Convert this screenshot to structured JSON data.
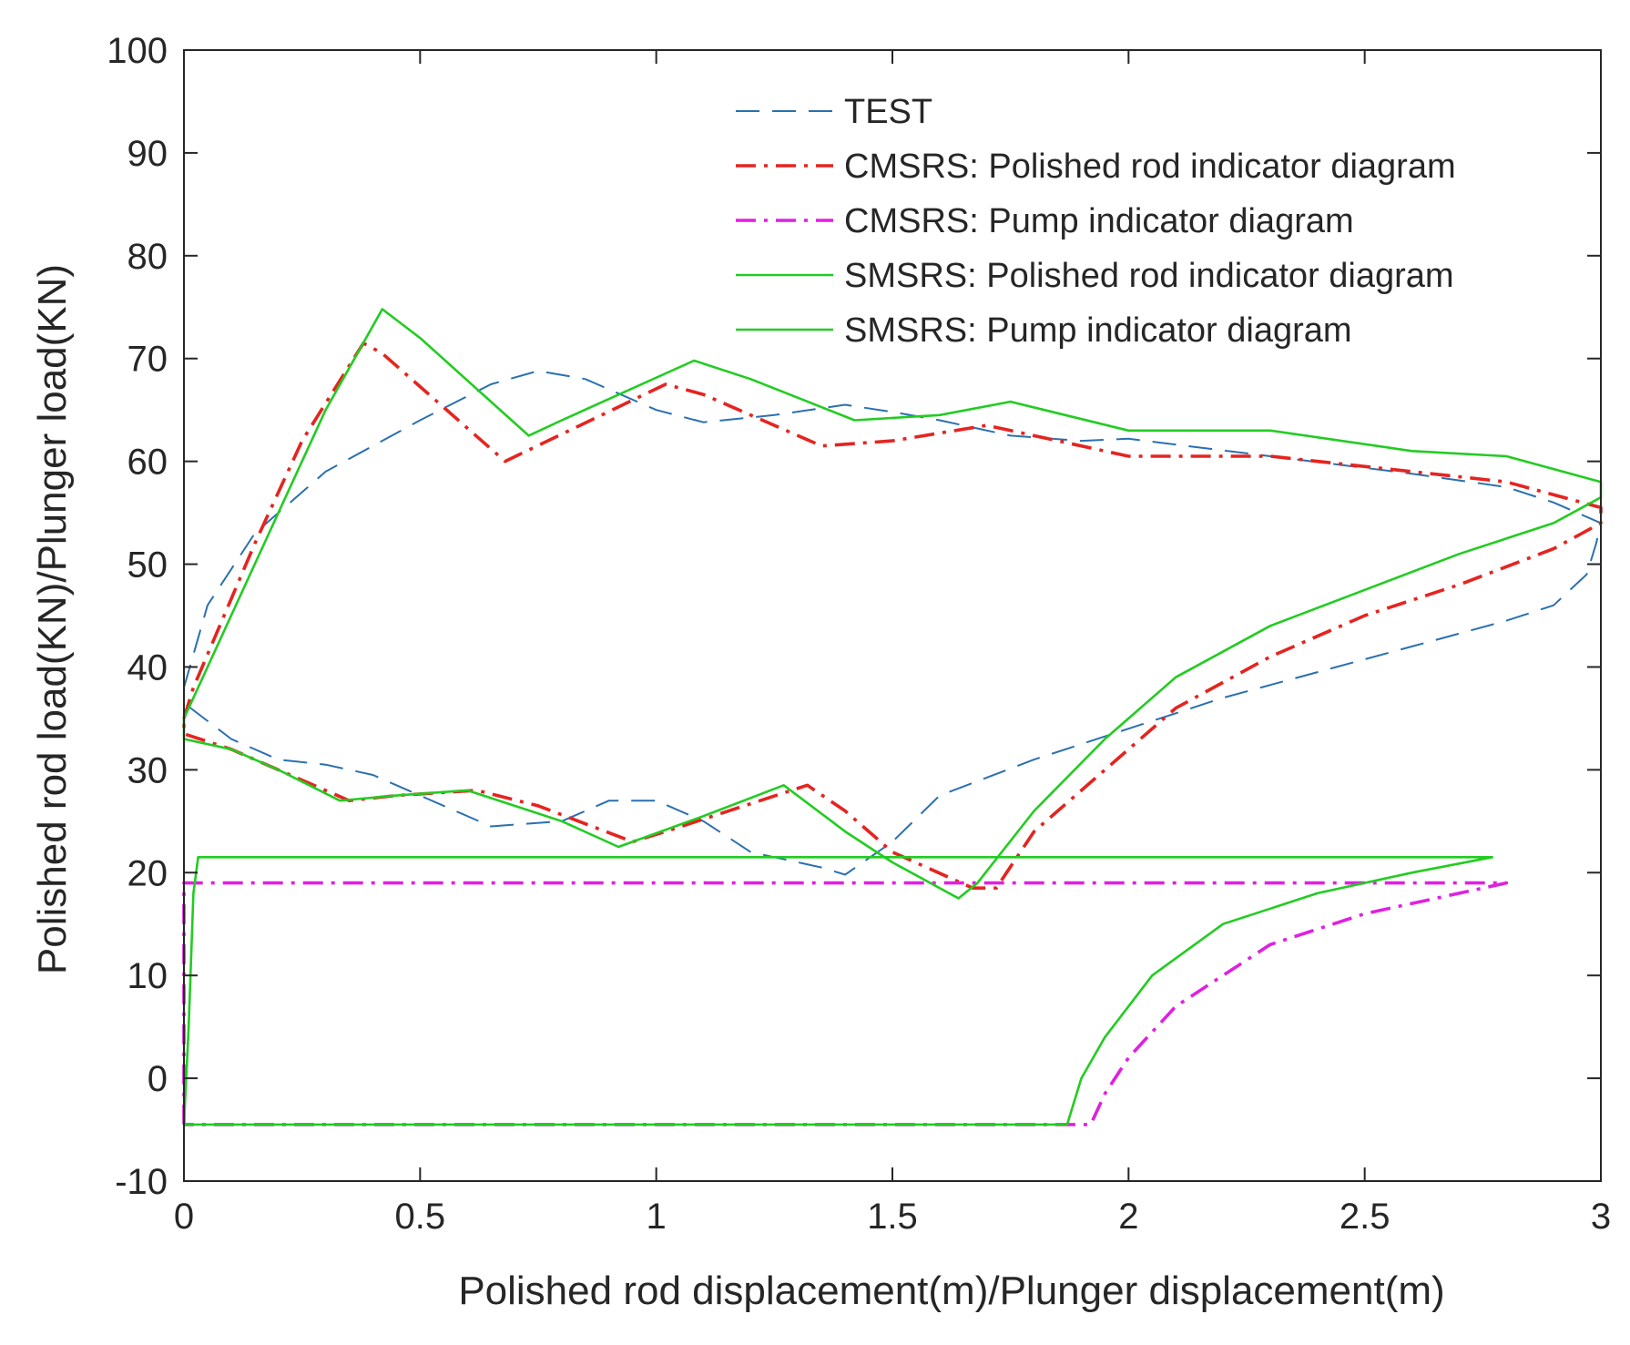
{
  "chart_data": {
    "type": "line",
    "title": "",
    "xlabel": "Polished rod displacement(m)/Plunger displacement(m)",
    "ylabel": "Polished rod load(KN)/Plunger load(KN)",
    "xlim": [
      0,
      3
    ],
    "ylim": [
      -10,
      100
    ],
    "xticks": [
      0,
      0.5,
      1,
      1.5,
      2,
      2.5,
      3
    ],
    "xtick_labels": [
      "0",
      "0.5",
      "1",
      "1.5",
      "2",
      "2.5",
      "3"
    ],
    "yticks": [
      -10,
      0,
      10,
      20,
      30,
      40,
      50,
      60,
      70,
      80,
      90,
      100
    ],
    "ytick_labels": [
      "-10",
      "0",
      "10",
      "20",
      "30",
      "40",
      "50",
      "60",
      "70",
      "80",
      "90",
      "100"
    ],
    "grid": false,
    "legend_position": "top-right",
    "series": [
      {
        "name": "TEST",
        "color": "#2a70b0",
        "style": "dashed",
        "points": [
          [
            0,
            38
          ],
          [
            0.05,
            46
          ],
          [
            0.15,
            53
          ],
          [
            0.3,
            59
          ],
          [
            0.5,
            64
          ],
          [
            0.65,
            67.5
          ],
          [
            0.75,
            68.8
          ],
          [
            0.85,
            68
          ],
          [
            1.0,
            65
          ],
          [
            1.1,
            63.8
          ],
          [
            1.25,
            64.5
          ],
          [
            1.4,
            65.5
          ],
          [
            1.5,
            64.8
          ],
          [
            1.6,
            64
          ],
          [
            1.75,
            62.5
          ],
          [
            1.9,
            62
          ],
          [
            2.0,
            62.2
          ],
          [
            2.3,
            60.5
          ],
          [
            2.6,
            58.8
          ],
          [
            2.8,
            57.5
          ],
          [
            2.9,
            56
          ],
          [
            3.0,
            54
          ],
          [
            2.99,
            52
          ],
          [
            2.97,
            49
          ],
          [
            2.9,
            46
          ],
          [
            2.8,
            44.5
          ],
          [
            2.6,
            42
          ],
          [
            2.4,
            39.5
          ],
          [
            2.2,
            37
          ],
          [
            2.0,
            34
          ],
          [
            1.8,
            31
          ],
          [
            1.6,
            27.5
          ],
          [
            1.5,
            23
          ],
          [
            1.4,
            19.8
          ],
          [
            1.35,
            20.5
          ],
          [
            1.2,
            22
          ],
          [
            1.1,
            25
          ],
          [
            1.0,
            27
          ],
          [
            0.9,
            27
          ],
          [
            0.8,
            25
          ],
          [
            0.65,
            24.5
          ],
          [
            0.5,
            27.5
          ],
          [
            0.4,
            29.5
          ],
          [
            0.3,
            30.5
          ],
          [
            0.2,
            31
          ],
          [
            0.1,
            33
          ],
          [
            0,
            36.5
          ]
        ]
      },
      {
        "name": "CMSRS: Polished rod indicator diagram",
        "color": "#e52420",
        "style": "dashdot",
        "points": [
          [
            0,
            35
          ],
          [
            0.02,
            38
          ],
          [
            0.15,
            52
          ],
          [
            0.25,
            62
          ],
          [
            0.38,
            71.5
          ],
          [
            0.42,
            70.5
          ],
          [
            0.68,
            60
          ],
          [
            1.02,
            67.5
          ],
          [
            1.1,
            66.5
          ],
          [
            1.35,
            61.5
          ],
          [
            1.5,
            62
          ],
          [
            1.7,
            63.5
          ],
          [
            2.0,
            60.5
          ],
          [
            2.3,
            60.5
          ],
          [
            2.6,
            59
          ],
          [
            2.8,
            58
          ],
          [
            3.0,
            55.5
          ],
          [
            3.0,
            54
          ],
          [
            2.9,
            51.5
          ],
          [
            2.7,
            48
          ],
          [
            2.5,
            45
          ],
          [
            2.3,
            41
          ],
          [
            2.1,
            36
          ],
          [
            1.95,
            30
          ],
          [
            1.8,
            24
          ],
          [
            1.72,
            18.5
          ],
          [
            1.67,
            18.5
          ],
          [
            1.5,
            22
          ],
          [
            1.4,
            26
          ],
          [
            1.32,
            28.5
          ],
          [
            1.22,
            27
          ],
          [
            1.02,
            24
          ],
          [
            0.95,
            23
          ],
          [
            0.75,
            26.5
          ],
          [
            0.62,
            28
          ],
          [
            0.45,
            27.5
          ],
          [
            0.35,
            27
          ],
          [
            0.2,
            30
          ],
          [
            0.1,
            32
          ],
          [
            0,
            33.5
          ],
          [
            0,
            35
          ]
        ]
      },
      {
        "name": "CMSRS: Pump indicator diagram",
        "color": "#e020e0",
        "style": "dashdot",
        "points": [
          [
            0,
            -4.5
          ],
          [
            0,
            19
          ],
          [
            0.02,
            19
          ],
          [
            2.8,
            19
          ],
          [
            2.7,
            18
          ],
          [
            2.5,
            16
          ],
          [
            2.3,
            13
          ],
          [
            2.1,
            7
          ],
          [
            2.0,
            2
          ],
          [
            1.95,
            -1.5
          ],
          [
            1.92,
            -4.5
          ],
          [
            0,
            -4.5
          ]
        ]
      },
      {
        "name": "SMSRS: Polished rod indicator diagram",
        "color": "#22cc22",
        "style": "solid",
        "points": [
          [
            0,
            35
          ],
          [
            0.02,
            37
          ],
          [
            0.15,
            50
          ],
          [
            0.3,
            65
          ],
          [
            0.42,
            74.8
          ],
          [
            0.5,
            72
          ],
          [
            0.73,
            62.5
          ],
          [
            0.8,
            64
          ],
          [
            1.08,
            69.8
          ],
          [
            1.2,
            68
          ],
          [
            1.42,
            64
          ],
          [
            1.6,
            64.5
          ],
          [
            1.75,
            65.8
          ],
          [
            2.0,
            63
          ],
          [
            2.3,
            63
          ],
          [
            2.6,
            61
          ],
          [
            2.8,
            60.5
          ],
          [
            3.0,
            58
          ],
          [
            3.0,
            56.5
          ],
          [
            2.9,
            54
          ],
          [
            2.7,
            51
          ],
          [
            2.5,
            47.5
          ],
          [
            2.3,
            44
          ],
          [
            2.1,
            39
          ],
          [
            1.95,
            33
          ],
          [
            1.8,
            26
          ],
          [
            1.68,
            19
          ],
          [
            1.64,
            17.5
          ],
          [
            1.5,
            21
          ],
          [
            1.4,
            24
          ],
          [
            1.27,
            28.5
          ],
          [
            1.1,
            25.5
          ],
          [
            0.92,
            22.5
          ],
          [
            0.8,
            25
          ],
          [
            0.6,
            28
          ],
          [
            0.45,
            27.5
          ],
          [
            0.33,
            27
          ],
          [
            0.2,
            30
          ],
          [
            0.1,
            32
          ],
          [
            0,
            33
          ],
          [
            0,
            35
          ]
        ]
      },
      {
        "name": "SMSRS: Pump indicator diagram",
        "color": "#22cc22",
        "style": "solid",
        "points": [
          [
            0,
            -4.5
          ],
          [
            0.01,
            5
          ],
          [
            0.02,
            18
          ],
          [
            0.03,
            21.5
          ],
          [
            0.1,
            21.5
          ],
          [
            2.77,
            21.5
          ],
          [
            2.77,
            21.5
          ],
          [
            2.6,
            20
          ],
          [
            2.4,
            18
          ],
          [
            2.2,
            15
          ],
          [
            2.05,
            10
          ],
          [
            1.95,
            4
          ],
          [
            1.9,
            0
          ],
          [
            1.87,
            -4.5
          ],
          [
            0,
            -4.5
          ]
        ]
      }
    ]
  }
}
